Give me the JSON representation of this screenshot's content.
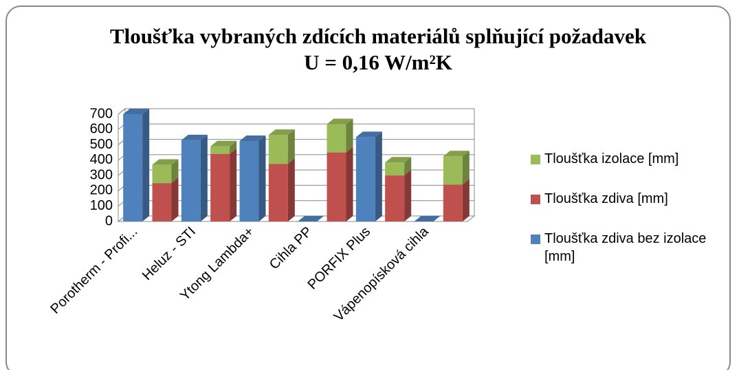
{
  "chart_data": {
    "type": "bar3d_stacked",
    "title": "Tloušťka vybraných zdících materiálů splňující požadavek U = 0,16 W/m²K",
    "categories": [
      "Porotherm - Profi...",
      null,
      "Heluz - STI",
      null,
      "Ytong Lambda+",
      null,
      "Cihla PP",
      null,
      "PORFIX Plus",
      null,
      "Vápenopísková cihla",
      null
    ],
    "series": [
      {
        "name": "Tloušťka zdiva bez izolace [mm]",
        "color": "#4f81bd",
        "values": [
          700,
          null,
          530,
          null,
          525,
          null,
          0,
          null,
          550,
          null,
          0,
          null
        ]
      },
      {
        "name": "Tloušťka zdiva  [mm]",
        "color": "#c0504d",
        "values": [
          null,
          250,
          null,
          440,
          null,
          375,
          null,
          450,
          null,
          300,
          null,
          240
        ]
      },
      {
        "name": "Tloušťka izolace [mm]",
        "color": "#9bbb59",
        "values": [
          null,
          120,
          null,
          50,
          null,
          190,
          null,
          185,
          null,
          85,
          null,
          185
        ]
      }
    ],
    "ylim": [
      0,
      700
    ],
    "yticks": [
      0,
      100,
      200,
      300,
      400,
      500,
      600,
      700
    ],
    "grid": true
  }
}
